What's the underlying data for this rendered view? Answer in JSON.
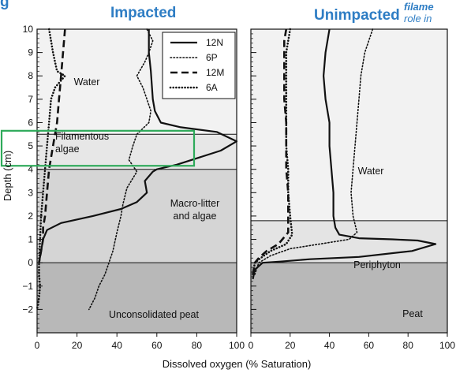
{
  "headers": {
    "left": "Impacted",
    "right": "Unimpacted",
    "top_left_fragment": "g",
    "side_note_line1": "filame",
    "side_note_line2": "role in"
  },
  "chart_data": {
    "type": "line",
    "xlabel": "Dissolved oxygen (% Saturation)",
    "ylabel": "Depth (cm)",
    "ylim": [
      -3,
      10
    ],
    "y_ticks": [
      10,
      9,
      8,
      7,
      6,
      5,
      4,
      3,
      2,
      1,
      0,
      -1,
      -2
    ],
    "y_tick_labels": [
      "10",
      "9",
      "8",
      "7",
      "6",
      "5",
      "4",
      "3",
      "2",
      "1",
      "0",
      "−1",
      "−2"
    ],
    "legend": {
      "position": "top-right",
      "entries": [
        {
          "name": "12N",
          "style": "solid"
        },
        {
          "name": "6P",
          "style": "dotted"
        },
        {
          "name": "12M",
          "style": "dashed"
        },
        {
          "name": "6A",
          "style": "dotted-thick"
        }
      ]
    },
    "panels": [
      {
        "title": "Impacted",
        "xlim": [
          0,
          100
        ],
        "x_ticks": [
          0,
          20,
          40,
          60,
          80,
          100
        ],
        "x_tick_labels": [
          "0",
          "20",
          "40",
          "60",
          "80",
          "100"
        ],
        "zones": [
          {
            "label": "Water",
            "top": 10,
            "bottom": 5.5,
            "shade": "#f2f2f2"
          },
          {
            "label": "Filamentous\nalgae",
            "top": 5.5,
            "bottom": 4,
            "shade": "#e7e7e7"
          },
          {
            "label": "Macro-litter\nand algae",
            "top": 4,
            "bottom": 0,
            "shade": "#d5d5d5"
          },
          {
            "label": "Unconsolidated peat",
            "top": 0,
            "bottom": -3,
            "shade": "#b8b8b8"
          }
        ],
        "highlight_box": {
          "top": 5.65,
          "bottom": 4.15
        },
        "series": [
          {
            "name": "12N",
            "style": "solid",
            "x": [
              56,
              56,
              57,
              58,
              59,
              62,
              72,
              90,
              100,
              92,
              70,
              60,
              58,
              54,
              55,
              50,
              42,
              28,
              12,
              5,
              3,
              2,
              1
            ],
            "y": [
              10,
              9,
              8.2,
              7,
              6.5,
              6,
              5.8,
              5.6,
              5.2,
              4.8,
              4.2,
              4,
              3.9,
              3.5,
              3,
              2.6,
              2.3,
              2,
              1.7,
              1.4,
              1,
              0.5,
              0
            ]
          },
          {
            "name": "6P",
            "style": "dotted",
            "x": [
              55,
              58,
              56,
              54,
              50,
              53,
              55,
              57,
              56,
              50,
              48,
              46,
              50,
              45,
              43,
              42,
              40,
              38,
              36,
              34,
              31,
              29,
              26
            ],
            "y": [
              10,
              9.5,
              9,
              8.6,
              8,
              7.5,
              7,
              6.5,
              6,
              5.5,
              5,
              4.4,
              3.9,
              3.2,
              2.5,
              2,
              1.3,
              0.5,
              0,
              -0.5,
              -1,
              -1.5,
              -2
            ]
          },
          {
            "name": "12M",
            "style": "dashed",
            "x": [
              14,
              13,
              12,
              11,
              10,
              8,
              6,
              5,
              4,
              3,
              3,
              2,
              1
            ],
            "y": [
              10,
              9,
              8,
              7,
              6,
              5,
              4,
              3,
              2,
              1.5,
              1,
              0.5,
              0
            ]
          },
          {
            "name": "6A",
            "style": "dotted-thick",
            "x": [
              6,
              8,
              10,
              14,
              9,
              7,
              6,
              5,
              4,
              3,
              2,
              1.5,
              1,
              1,
              1.5,
              1,
              0
            ],
            "y": [
              10,
              9,
              8.2,
              8,
              7.5,
              7,
              6,
              5,
              4,
              3,
              2,
              1,
              0,
              -0.5,
              -1,
              -1.5,
              -2
            ]
          }
        ]
      },
      {
        "title": "Unimpacted",
        "xlim": [
          0,
          100
        ],
        "x_ticks": [
          0,
          20,
          40,
          60,
          80,
          100
        ],
        "x_tick_labels": [
          "0",
          "20",
          "40",
          "60",
          "80",
          "100"
        ],
        "zones": [
          {
            "label": "Water",
            "top": 10,
            "bottom": 1.8,
            "shade": "#f2f2f2"
          },
          {
            "label": "Periphyton",
            "top": 1.8,
            "bottom": 0,
            "shade": "#e4e4e4"
          },
          {
            "label": "Peat",
            "top": 0,
            "bottom": -3,
            "shade": "#b8b8b8"
          }
        ],
        "series": [
          {
            "name": "12N",
            "style": "solid",
            "x": [
              40,
              38,
              37,
              38,
              40,
              40,
              41,
              42,
              42,
              43,
              45,
              55,
              72,
              85,
              94,
              82,
              55,
              30,
              15,
              6,
              2,
              1
            ],
            "y": [
              10,
              9,
              8,
              7,
              6,
              5,
              4,
              3,
              2,
              1.5,
              1.2,
              1.05,
              1,
              0.95,
              0.8,
              0.5,
              0.25,
              0.15,
              0.05,
              0,
              -0.3,
              -0.7
            ]
          },
          {
            "name": "6P",
            "style": "dotted",
            "x": [
              62,
              60,
              58,
              56,
              55,
              54,
              53,
              52,
              51,
              52,
              54,
              50,
              35,
              20,
              10,
              4,
              2
            ],
            "y": [
              10,
              9.5,
              9,
              8,
              7,
              6,
              5,
              4,
              3,
              2,
              1.3,
              1,
              0.8,
              0.6,
              0.3,
              0,
              -0.5
            ]
          },
          {
            "name": "12M",
            "style": "dashed",
            "x": [
              18,
              17,
              17,
              17,
              17,
              18,
              18,
              18,
              19,
              19,
              19,
              14,
              8,
              4,
              2,
              1
            ],
            "y": [
              10,
              9.5,
              9,
              8,
              7,
              6,
              5,
              4,
              3,
              2,
              1.3,
              0.8,
              0.5,
              0.2,
              0,
              -0.5
            ]
          },
          {
            "name": "6A",
            "style": "dotted-thick",
            "x": [
              20,
              19,
              18,
              18,
              18,
              18,
              18,
              19,
              19,
              20,
              21,
              18,
              10,
              5,
              2,
              1
            ],
            "y": [
              10,
              9.5,
              9,
              8,
              7,
              6,
              5,
              4,
              3,
              2,
              1.2,
              0.8,
              0.5,
              0.2,
              0,
              -0.5
            ]
          }
        ]
      }
    ]
  }
}
